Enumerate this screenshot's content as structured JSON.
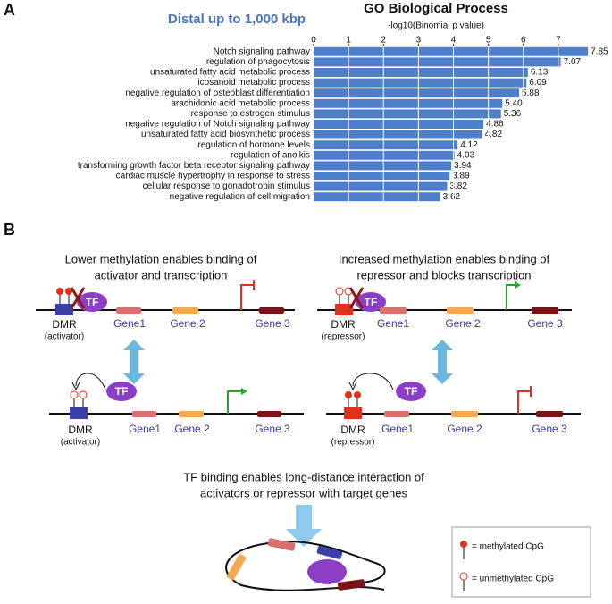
{
  "panel_labels": [
    "A",
    "B"
  ],
  "chart_data": {
    "type": "bar",
    "orientation": "horizontal",
    "title": "GO Biological Process",
    "subtitle": "Distal up to 1,000 kbp",
    "xlabel": "-log10(Binomial p value)",
    "categories": [
      "Notch signaling pathway",
      "regulation of phagocytosis",
      "unsaturated fatty acid metabolic process",
      "icosanoid metabolic process",
      "negative regulation of osteoblast differentiation",
      "arachidonic acid metabolic process",
      "response to estrogen stimulus",
      "negative regulation of Notch signaling pathway",
      "unsaturated fatty acid biosynthetic process",
      "regulation of hormone levels",
      "regulation of anoikis",
      "transforming growth factor beta receptor signaling pathway",
      "cardiac muscle hypertrophy in response to stress",
      "cellular response to gonadotropin stimulus",
      "negative regulation of cell migration"
    ],
    "values": [
      7.85,
      7.07,
      6.13,
      6.09,
      5.88,
      5.4,
      5.36,
      4.86,
      4.82,
      4.12,
      4.03,
      3.94,
      3.89,
      3.82,
      3.62
    ],
    "value_labels": [
      "7.85",
      "7.07",
      "6.13",
      "6.09",
      "5.88",
      "5.40",
      "5.36",
      "4.86",
      "4.82",
      "4.12",
      "4.03",
      "3.94",
      "3.89",
      "3.82",
      "3.62"
    ],
    "color": "#4f7fcb",
    "xlim": [
      0,
      8
    ],
    "xticks": [
      0,
      1,
      2,
      3,
      4,
      5,
      6,
      7
    ],
    "grid": true
  },
  "diagram": {
    "left_caption": [
      "Lower methylation enables binding of",
      "activator and transcription"
    ],
    "right_caption": [
      "Increased methylation enables binding of",
      "repressor and blocks transcription"
    ],
    "bottom_caption": [
      "TF binding enables long-distance interaction of",
      "activators or repressor with target genes"
    ],
    "tf": "TF",
    "dmr": "DMR",
    "activator": "(activator)",
    "repressor": "(repressor)",
    "genes": [
      "Gene1",
      "Gene 2",
      "Gene 3"
    ],
    "legend": [
      {
        "label": "= methylated CpG"
      },
      {
        "label": "= unmethylated CpG"
      }
    ]
  }
}
